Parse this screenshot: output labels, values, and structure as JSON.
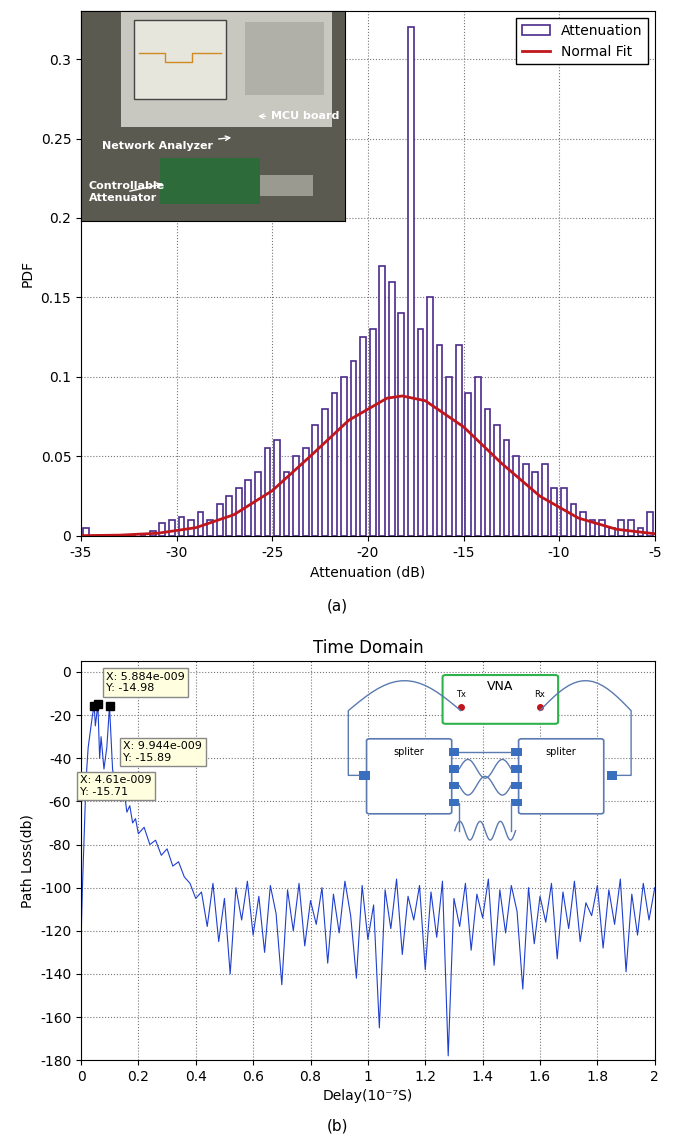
{
  "chart_data": [
    {
      "type": "histogram",
      "caption": "(a)",
      "x_label": "Attenuation (dB)",
      "y_label": "PDF",
      "xlim": [
        -35,
        -5
      ],
      "xticks": [
        -35,
        -30,
        -25,
        -20,
        -15,
        -10,
        -5
      ],
      "ylim": [
        0,
        0.33
      ],
      "yticks": [
        0,
        0.05,
        0.1,
        0.15,
        0.2,
        0.25,
        0.3
      ],
      "grid": true,
      "legend": "upper right",
      "series": [
        {
          "name": "Attenuation",
          "type": "histogram",
          "color": "#4b2a8c",
          "bins": [
            -35,
            -34.5,
            -34,
            -33.5,
            -33,
            -32.5,
            -32,
            -31.5,
            -31,
            -30.5,
            -30,
            -29.5,
            -29,
            -28.5,
            -28,
            -27.5,
            -27,
            -26.5,
            -26,
            -25.5,
            -25,
            -24.5,
            -24,
            -23.5,
            -23,
            -22.5,
            -22,
            -21.5,
            -21,
            -20.5,
            -20,
            -19.5,
            -19,
            -18.5,
            -18,
            -17.5,
            -17,
            -16.5,
            -16,
            -15.5,
            -15,
            -14.5,
            -14,
            -13.5,
            -13,
            -12.5,
            -12,
            -11.5,
            -11,
            -10.5,
            -10,
            -9.5,
            -9,
            -8.5,
            -8,
            -7.5,
            -7,
            -6.5,
            -6,
            -5.5,
            -5
          ],
          "counts": [
            0.005,
            0,
            0,
            0,
            0,
            0,
            0,
            0.003,
            0.008,
            0.01,
            0.012,
            0.01,
            0.015,
            0.01,
            0.02,
            0.025,
            0.03,
            0.035,
            0.04,
            0.055,
            0.06,
            0.04,
            0.05,
            0.055,
            0.07,
            0.08,
            0.09,
            0.1,
            0.11,
            0.125,
            0.13,
            0.17,
            0.16,
            0.14,
            0.32,
            0.13,
            0.15,
            0.12,
            0.1,
            0.12,
            0.09,
            0.1,
            0.08,
            0.07,
            0.06,
            0.05,
            0.045,
            0.04,
            0.045,
            0.03,
            0.03,
            0.02,
            0.015,
            0.01,
            0.01,
            0.005,
            0.01,
            0.01,
            0.005,
            0.015
          ]
        },
        {
          "name": "Normal Fit",
          "type": "line",
          "color": "#c0161c",
          "x": [
            -35,
            -33,
            -31,
            -29,
            -27,
            -25,
            -23,
            -21,
            -19,
            -18.2,
            -17,
            -15,
            -13,
            -11,
            -9,
            -7,
            -5
          ],
          "values": [
            0.0001,
            0.0004,
            0.0016,
            0.0051,
            0.0133,
            0.0284,
            0.0502,
            0.0727,
            0.0866,
            0.088,
            0.085,
            0.0686,
            0.0455,
            0.0249,
            0.0112,
            0.0041,
            0.0013
          ]
        }
      ],
      "inset": {
        "labels": [
          "Network Analyzer",
          "MCU board",
          "Controllable\nAttenuator"
        ]
      }
    },
    {
      "type": "line",
      "caption": "(b)",
      "title": "Time Domain",
      "x_label": "Delay(10⁻⁷S)",
      "y_label": "Path Loss(db)",
      "xlim": [
        0,
        2
      ],
      "xticks": [
        0,
        0.2,
        0.4,
        0.6,
        0.8,
        1,
        1.2,
        1.4,
        1.6,
        1.8,
        2
      ],
      "ylim": [
        -180,
        5
      ],
      "yticks": [
        -180,
        -160,
        -140,
        -120,
        -100,
        -80,
        -60,
        -40,
        -20,
        0
      ],
      "grid": true,
      "color": "#1f3fd0",
      "x": [
        0,
        0.005,
        0.01,
        0.015,
        0.02,
        0.025,
        0.03,
        0.035,
        0.04,
        0.0461,
        0.05,
        0.0588,
        0.065,
        0.07,
        0.08,
        0.09,
        0.09944,
        0.11,
        0.12,
        0.13,
        0.14,
        0.15,
        0.16,
        0.17,
        0.18,
        0.19,
        0.2,
        0.22,
        0.24,
        0.26,
        0.28,
        0.3,
        0.32,
        0.34,
        0.36,
        0.38,
        0.4,
        0.42,
        0.44,
        0.46,
        0.48,
        0.5,
        0.52,
        0.54,
        0.56,
        0.58,
        0.6,
        0.62,
        0.64,
        0.66,
        0.68,
        0.7,
        0.72,
        0.74,
        0.76,
        0.78,
        0.8,
        0.82,
        0.84,
        0.86,
        0.88,
        0.9,
        0.92,
        0.94,
        0.96,
        0.98,
        1.0,
        1.02,
        1.04,
        1.06,
        1.08,
        1.1,
        1.12,
        1.14,
        1.16,
        1.18,
        1.2,
        1.22,
        1.24,
        1.26,
        1.28,
        1.3,
        1.32,
        1.34,
        1.36,
        1.38,
        1.4,
        1.42,
        1.44,
        1.46,
        1.48,
        1.5,
        1.52,
        1.54,
        1.56,
        1.58,
        1.6,
        1.62,
        1.64,
        1.66,
        1.68,
        1.7,
        1.72,
        1.74,
        1.76,
        1.78,
        1.8,
        1.82,
        1.84,
        1.86,
        1.88,
        1.9,
        1.92,
        1.94,
        1.96,
        1.98,
        2.0
      ],
      "values": [
        -125,
        -100,
        -80,
        -60,
        -45,
        -35,
        -30,
        -25,
        -20,
        -15.71,
        -25,
        -14.98,
        -40,
        -30,
        -45,
        -35,
        -15.89,
        -45,
        -55,
        -50,
        -60,
        -55,
        -65,
        -62,
        -70,
        -68,
        -75,
        -72,
        -80,
        -78,
        -85,
        -82,
        -90,
        -88,
        -95,
        -98,
        -105,
        -102,
        -118,
        -98,
        -125,
        -105,
        -140,
        -100,
        -115,
        -97,
        -122,
        -104,
        -130,
        -99,
        -112,
        -145,
        -101,
        -120,
        -98,
        -127,
        -106,
        -117,
        -100,
        -135,
        -103,
        -121,
        -97,
        -113,
        -142,
        -99,
        -124,
        -108,
        -165,
        -101,
        -119,
        -96,
        -131,
        -104,
        -115,
        -99,
        -138,
        -102,
        -123,
        -97,
        -178,
        -105,
        -118,
        -98,
        -129,
        -103,
        -114,
        -96,
        -136,
        -101,
        -121,
        -99,
        -111,
        -147,
        -100,
        -126,
        -104,
        -116,
        -98,
        -133,
        -102,
        -119,
        -97,
        -125,
        -107,
        -113,
        -99,
        -128,
        -101,
        -117,
        -96,
        -139,
        -103,
        -122,
        -98,
        -115,
        -100
      ],
      "annotations": [
        {
          "text": "X: 4.61e-009\nY: -15.71",
          "x": 0.0461,
          "y": -15.71
        },
        {
          "text": "X: 5.884e-009\nY: -14.98",
          "x": 0.0588,
          "y": -14.98
        },
        {
          "text": "X: 9.944e-009\nY: -15.89",
          "x": 0.09944,
          "y": -15.89
        }
      ],
      "inset": {
        "title": "VNA",
        "ports": [
          "Tx",
          "Rx"
        ],
        "blocks": [
          "spliter",
          "spliter"
        ]
      }
    }
  ]
}
